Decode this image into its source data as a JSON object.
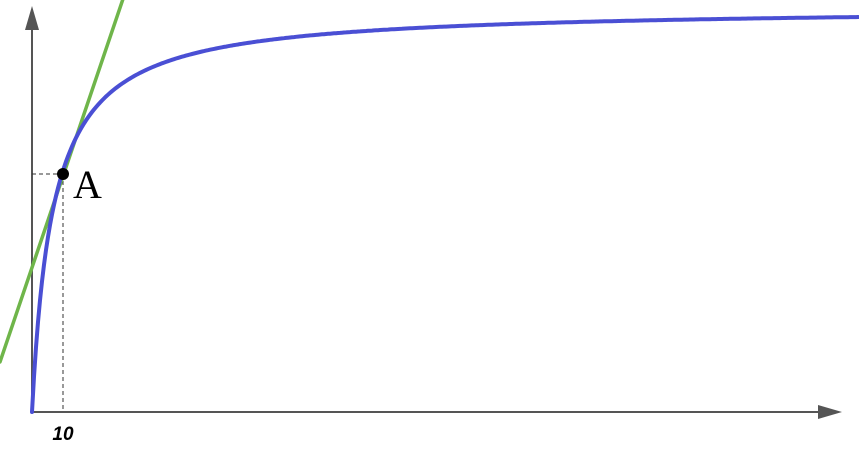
{
  "figure": {
    "point_label": "A",
    "x_tick_label": "10",
    "colors": {
      "curve": "#4a4fd4",
      "tangent": "#6fb54a",
      "axes": "#555555",
      "point": "#000000"
    }
  }
}
